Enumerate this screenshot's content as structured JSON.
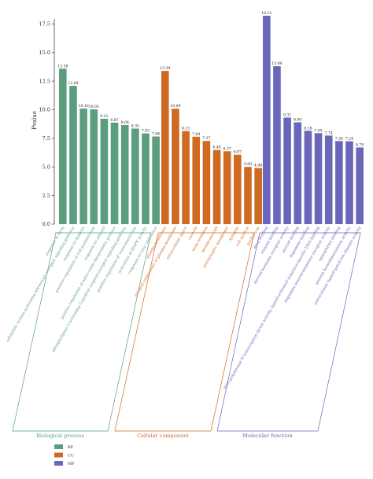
{
  "chart_data": {
    "type": "bar",
    "ylabel": "Pvalue",
    "ylim": [
      0,
      18.21
    ],
    "yticks": [
      0.0,
      2.5,
      5.0,
      7.5,
      10.0,
      12.5,
      15.0,
      17.5
    ],
    "ytick_labels": [
      "0.0",
      "2.5",
      "5.0",
      "7.5",
      "10.0",
      "12.5",
      "15.0",
      "17.5"
    ],
    "grid": false,
    "legend_placement": "bottom-left",
    "groups": [
      {
        "key": "BP",
        "name": "Biological process",
        "color": "#5a9e7e",
        "categories": [
          "response to drug",
          "adenylate cyclase-activating adrenergic receptor signaling pathway",
          "response to hypoxia",
          "positive regulation of cell proliferation",
          "response to ethanol",
          "positive regulation of nitric-oxide biosynthetic process",
          "phospholipase C-activating G-protein coupled receptor signaling pathway",
          "positive regulation of vasoconstriction",
          "activation of MAPK activity",
          "response to toxic substance"
        ],
        "values": [
          13.58,
          12.08,
          10.1,
          10.03,
          9.21,
          8.87,
          8.66,
          8.35,
          7.93,
          7.66
        ],
        "labels": [
          "13.58",
          "12.08",
          "10.10",
          "10.03",
          "9.21",
          "8.87",
          "8.66",
          "8.35",
          "7.93",
          "7.66"
        ]
      },
      {
        "key": "CC",
        "name": "Cellular component",
        "color": "#cf6a23",
        "categories": [
          "plasma membrane",
          "integral component of plasma membrane",
          "extracellular space",
          "caveola",
          "axon terminus",
          "membrane raft",
          "postsynaptic membrane",
          "synapse",
          "cell surface",
          "perikaryon"
        ],
        "values": [
          13.39,
          10.09,
          8.13,
          7.64,
          7.27,
          6.48,
          6.37,
          6.07,
          5.0,
          4.9
        ],
        "labels": [
          "13.39",
          "10.09",
          "8.13",
          "7.64",
          "7.27",
          "6.48",
          "6.37",
          "6.07",
          "5.00",
          "4.90"
        ]
      },
      {
        "key": "MF",
        "name": "Molecular function",
        "color": "#6a67ba",
        "categories": [
          "drug binding",
          "enzyme binding",
          "steroid hormone receptor activity",
          "steroid binding",
          "dopamine binding",
          "RNA polymerase II transcription factor activity, ligand-activated sequence-specific DNA binding",
          "dopamine neurotransmitter receptor activity",
          "epinephrine binding",
          "protein homodimerization activity",
          "extracellular ligand-gated ion channel activity"
        ],
        "values": [
          18.21,
          13.8,
          9.31,
          8.9,
          8.16,
          7.95,
          7.74,
          7.26,
          7.24,
          6.7
        ],
        "labels": [
          "18.21",
          "13.80",
          "9.31",
          "8.90",
          "8.16",
          "7.95",
          "7.74",
          "7.26",
          "7.24",
          "6.70"
        ]
      }
    ],
    "legend": [
      {
        "label": "BP",
        "color": "#5a9e7e"
      },
      {
        "label": "CC",
        "color": "#cf6a23"
      },
      {
        "label": "MF",
        "color": "#6a67ba"
      }
    ]
  }
}
